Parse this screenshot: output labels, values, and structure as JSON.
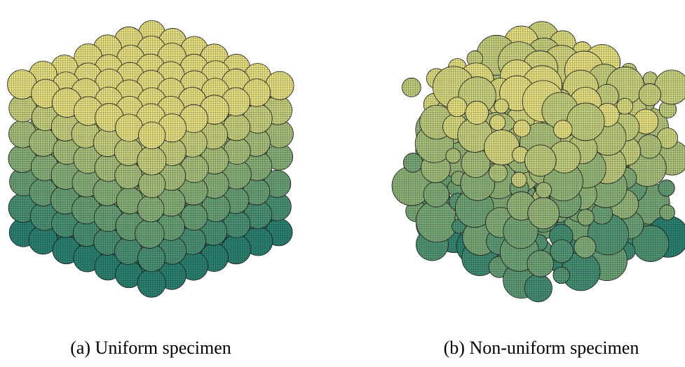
{
  "figure": {
    "panels": [
      {
        "caption": "(a) Uniform specimen"
      },
      {
        "caption": "(b) Non-uniform specimen"
      }
    ]
  }
}
